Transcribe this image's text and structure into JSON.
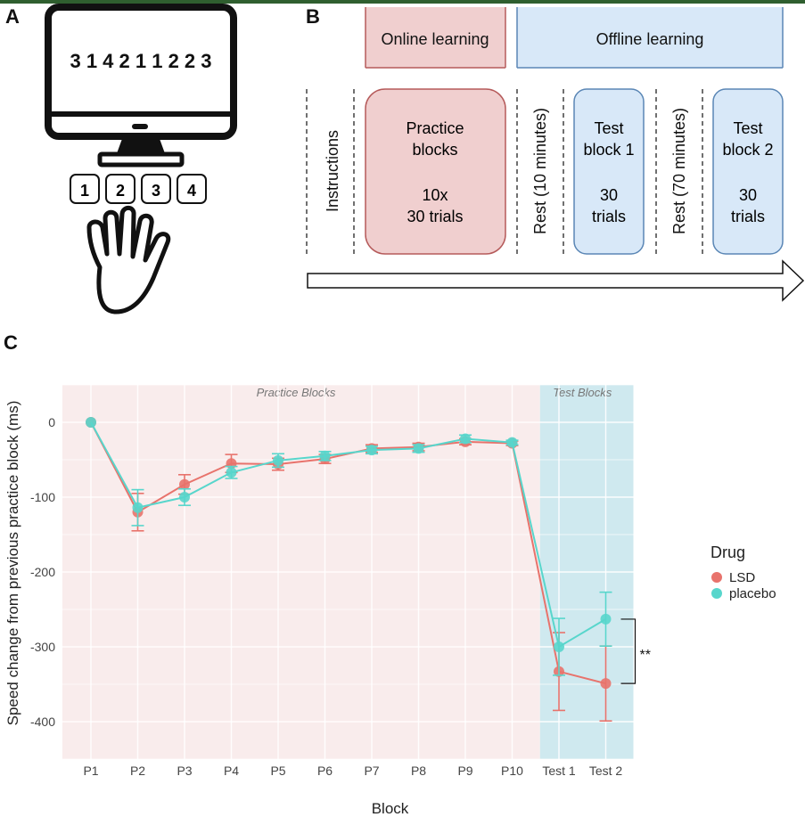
{
  "panels": {
    "a": "A",
    "b": "B",
    "c": "C"
  },
  "panel_a": {
    "sequence": "3 1 4 2 1 1 2 2 3",
    "keys": [
      "1",
      "2",
      "3",
      "4"
    ]
  },
  "panel_b": {
    "phase_online": "Online learning",
    "phase_offline": "Offline learning",
    "instructions": "Instructions",
    "practice_line1": "Practice",
    "practice_line2": "blocks",
    "practice_line3": "10x",
    "practice_line4": "30 trials",
    "rest1": "Rest (10 minutes)",
    "test1_line1": "Test",
    "test1_line2": "block 1",
    "test1_line3": "30",
    "test1_line4": "trials",
    "rest2": "Rest (70 minutes)",
    "test2_line1": "Test",
    "test2_line2": "block 2",
    "test2_line3": "30",
    "test2_line4": "trials",
    "colors": {
      "online": "#f0cfcf",
      "online_border": "#b55a5a",
      "offline": "#d8e8f8",
      "offline_border": "#5a86b5"
    }
  },
  "chart_data": {
    "type": "line",
    "title": "",
    "xlabel": "Block",
    "ylabel": "Speed change from previous practice block (ms)",
    "categories": [
      "P1",
      "P2",
      "P3",
      "P4",
      "P5",
      "P6",
      "P7",
      "P8",
      "P9",
      "P10",
      "Test 1",
      "Test 2"
    ],
    "yticks": [
      0,
      -100,
      -200,
      -300,
      -400
    ],
    "ylim": [
      -450,
      50
    ],
    "grid": true,
    "region_practice_label": "Practice Blocks",
    "region_test_label": "Test Blocks",
    "significance": "**",
    "legend": {
      "title": "Drug",
      "placement": "right"
    },
    "series": [
      {
        "name": "LSD",
        "color": "#e8736c",
        "values": [
          0,
          -120,
          -83,
          -55,
          -56,
          -49,
          -35,
          -33,
          -26,
          -28,
          -333,
          -349
        ],
        "error": [
          0,
          25,
          13,
          12,
          8,
          6,
          5,
          5,
          4,
          3,
          52,
          50
        ]
      },
      {
        "name": "placebo",
        "color": "#58d6cc",
        "values": [
          0,
          -114,
          -100,
          -67,
          -51,
          -45,
          -37,
          -35,
          -22,
          -27,
          -300,
          -263
        ],
        "error": [
          0,
          24,
          11,
          8,
          9,
          6,
          5,
          5,
          5,
          3,
          38,
          36
        ]
      }
    ],
    "colors": {
      "practice_band": "#f9ecec",
      "test_band": "#cfe9ef"
    }
  }
}
